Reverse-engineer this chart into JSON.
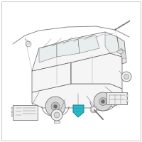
{
  "bg_color": "#ffffff",
  "border_color": "#b0b0b0",
  "vehicle_outline": "#6a6a6a",
  "vehicle_fill": "#f5f5f5",
  "window_fill": "#e8eded",
  "roof_lines_fill": "#ececec",
  "highlight_color": "#29b8c8",
  "highlight_edge": "#1a8899",
  "line_color": "#6a6a6a",
  "component_fill": "#efefef",
  "component_edge": "#6a6a6a",
  "wire_color": "#888888",
  "fig_width": 2.0,
  "fig_height": 2.0,
  "dpi": 100
}
